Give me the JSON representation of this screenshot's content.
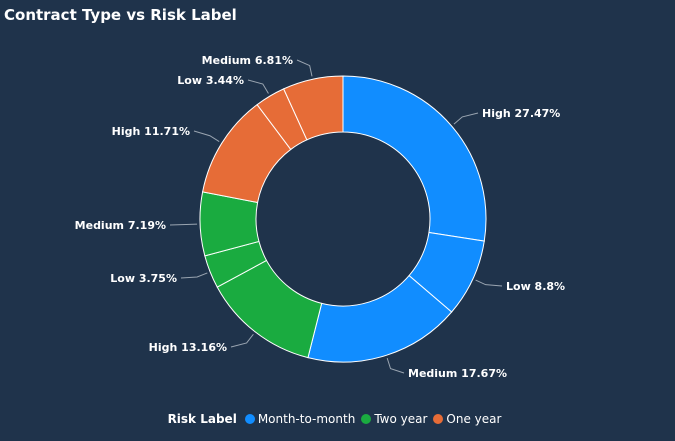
{
  "chart_data": {
    "type": "pie",
    "title": "Contract Type vs Risk Label",
    "legend_title": "Risk Label",
    "legend_position": "bottom-center",
    "series": [
      {
        "name": "Month-to-month",
        "color": "#118dff"
      },
      {
        "name": "Two year",
        "color": "#1aab40"
      },
      {
        "name": "One year",
        "color": "#e66c37"
      }
    ],
    "slices": [
      {
        "label": "High",
        "value": 27.47,
        "display": "High 27.47%",
        "series": "Month-to-month"
      },
      {
        "label": "Low",
        "value": 8.8,
        "display": "Low 8.8%",
        "series": "Month-to-month"
      },
      {
        "label": "Medium",
        "value": 17.67,
        "display": "Medium 17.67%",
        "series": "Month-to-month"
      },
      {
        "label": "High",
        "value": 13.16,
        "display": "High 13.16%",
        "series": "Two year"
      },
      {
        "label": "Low",
        "value": 3.75,
        "display": "Low 3.75%",
        "series": "Two year"
      },
      {
        "label": "Medium",
        "value": 7.19,
        "display": "Medium 7.19%",
        "series": "Two year"
      },
      {
        "label": "High",
        "value": 11.71,
        "display": "High 11.71%",
        "series": "One year"
      },
      {
        "label": "Low",
        "value": 3.44,
        "display": "Low 3.44%",
        "series": "One year"
      },
      {
        "label": "Medium",
        "value": 6.81,
        "display": "Medium 6.81%",
        "series": "One year"
      }
    ]
  }
}
